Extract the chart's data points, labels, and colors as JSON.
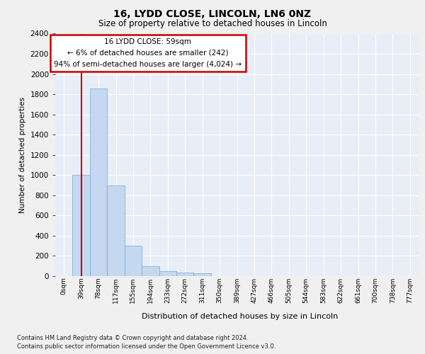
{
  "title1": "16, LYDD CLOSE, LINCOLN, LN6 0NZ",
  "title2": "Size of property relative to detached houses in Lincoln",
  "xlabel": "Distribution of detached houses by size in Lincoln",
  "ylabel": "Number of detached properties",
  "footer1": "Contains HM Land Registry data © Crown copyright and database right 2024.",
  "footer2": "Contains public sector information licensed under the Open Government Licence v3.0.",
  "annotation_title": "16 LYDD CLOSE: 59sqm",
  "annotation_line1": "← 6% of detached houses are smaller (242)",
  "annotation_line2": "94% of semi-detached houses are larger (4,024) →",
  "bar_values": [
    0,
    1000,
    1860,
    900,
    300,
    100,
    50,
    35,
    25,
    0,
    0,
    0,
    0,
    0,
    0,
    0,
    0,
    0,
    0,
    0,
    0
  ],
  "bar_labels": [
    "0sqm",
    "39sqm",
    "78sqm",
    "117sqm",
    "155sqm",
    "194sqm",
    "233sqm",
    "272sqm",
    "311sqm",
    "350sqm",
    "389sqm",
    "427sqm",
    "466sqm",
    "505sqm",
    "544sqm",
    "583sqm",
    "622sqm",
    "661sqm",
    "700sqm",
    "738sqm",
    "777sqm"
  ],
  "bar_color": "#c5d8f0",
  "bar_edge_color": "#6fa8d8",
  "red_line_x": 1.52,
  "ylim": [
    0,
    2400
  ],
  "yticks": [
    0,
    200,
    400,
    600,
    800,
    1000,
    1200,
    1400,
    1600,
    1800,
    2000,
    2200,
    2400
  ],
  "bg_color": "#f0f0f0",
  "plot_bg_color": "#e8eef8",
  "annotation_box_color": "#ffffff",
  "annotation_box_edge": "#cc0000",
  "red_line_color": "#cc0000"
}
